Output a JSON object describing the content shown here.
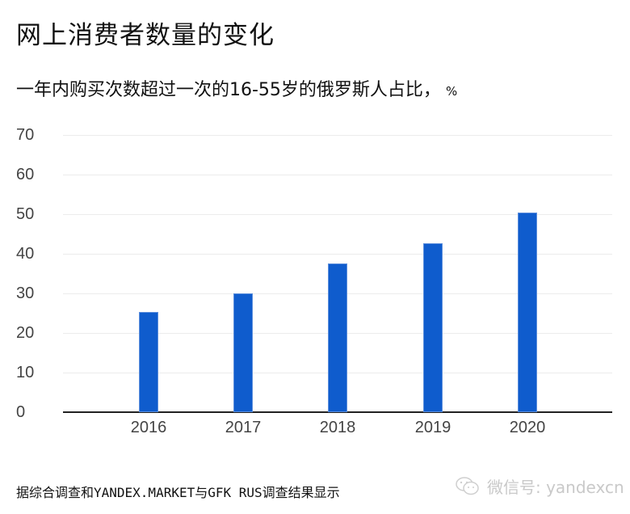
{
  "header": {
    "title": "网上消费者数量的变化",
    "subtitle": "一年内购买次数超过一次的16-55岁的俄罗斯人占比，",
    "unit": "%"
  },
  "footer": {
    "source": "据综合调查和YANDEX.MARKET与GFK RUS调查结果显示",
    "watermark": "微信号: yandexcn",
    "watermark_icon": "wechat-icon"
  },
  "colors": {
    "bar": "#0f5ccd",
    "grid": "#ececec",
    "axis": "#222222",
    "tick_text": "#444444"
  },
  "chart_data": {
    "type": "bar",
    "title": "网上消费者数量的变化",
    "subtitle": "一年内购买次数超过一次的16-55岁的俄罗斯人占比，%",
    "categories": [
      "2016",
      "2017",
      "2018",
      "2019",
      "2020"
    ],
    "values": [
      25.3,
      30,
      37.6,
      42.6,
      50.4
    ],
    "xlabel": "",
    "ylabel": "%",
    "ylim": [
      0,
      70
    ],
    "yticks": [
      "0",
      "10",
      "20",
      "30",
      "40",
      "50",
      "60",
      "70"
    ],
    "grid": true,
    "legend": null
  }
}
